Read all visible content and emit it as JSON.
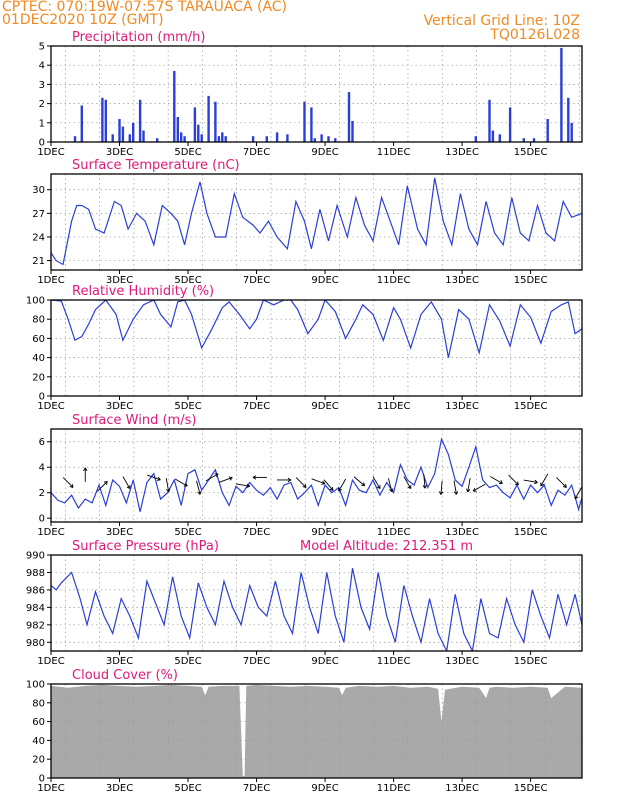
{
  "header": {
    "line1": "CPTEC:   070:19W-07:57S   TARAUACA (AC)",
    "line2": "01DEC2020 10Z (GMT)",
    "right1": "Vertical Grid Line: 10Z",
    "right2": "TQ0126L028"
  },
  "colors": {
    "header": "#f08a24",
    "title": "#e0197a",
    "series": "#2b3fd6",
    "wind": "#000000",
    "cloud": "#a9a9a9",
    "grid": "#999999"
  },
  "chart_data": [
    {
      "type": "bar",
      "title": "Precipitation  (mm/h)",
      "x_ticks": [
        "1DEC",
        "3DEC",
        "5DEC",
        "7DEC",
        "9DEC",
        "11DEC",
        "13DEC",
        "15DEC"
      ],
      "xlim": [
        0,
        15.5
      ],
      "ylim": [
        0,
        5
      ],
      "y_ticks": [
        0,
        1,
        2,
        3,
        4,
        5
      ],
      "grid": true,
      "x": [
        0.7,
        0.9,
        1.5,
        1.6,
        1.8,
        2.0,
        2.1,
        2.3,
        2.4,
        2.6,
        2.7,
        3.1,
        3.6,
        3.7,
        3.8,
        3.9,
        4.2,
        4.3,
        4.4,
        4.6,
        4.8,
        4.9,
        5.0,
        5.1,
        5.9,
        6.3,
        6.6,
        6.9,
        7.4,
        7.6,
        7.7,
        7.9,
        8.1,
        8.3,
        8.7,
        8.8,
        12.4,
        12.8,
        12.9,
        13.1,
        13.4,
        13.8,
        14.1,
        14.5,
        14.9,
        15.1,
        15.2
      ],
      "values": [
        0.3,
        1.9,
        2.3,
        2.2,
        0.4,
        1.2,
        0.8,
        0.4,
        1.0,
        2.2,
        0.6,
        0.2,
        3.7,
        1.3,
        0.5,
        0.3,
        1.8,
        0.9,
        0.4,
        2.4,
        2.1,
        0.3,
        0.5,
        0.3,
        0.3,
        0.3,
        0.5,
        0.4,
        2.1,
        1.8,
        0.2,
        0.4,
        0.3,
        0.2,
        2.6,
        1.1,
        0.3,
        2.2,
        0.6,
        0.4,
        1.8,
        0.2,
        0.2,
        1.2,
        4.9,
        2.3,
        1.0
      ]
    },
    {
      "type": "line",
      "title": "Surface Temperature  (nC)",
      "x_ticks": [
        "1DEC",
        "3DEC",
        "5DEC",
        "7DEC",
        "9DEC",
        "11DEC",
        "13DEC",
        "15DEC"
      ],
      "xlim": [
        0,
        15.5
      ],
      "ylim": [
        19.8,
        32.0
      ],
      "y_ticks": [
        21,
        24,
        27,
        30
      ],
      "grid": true,
      "series": [
        {
          "x": [
            0,
            0.15,
            0.35,
            0.6,
            0.75,
            0.9,
            1.1,
            1.3,
            1.55,
            1.85,
            2.05,
            2.25,
            2.5,
            2.75,
            3.0,
            3.25,
            3.5,
            3.7,
            3.9,
            4.1,
            4.35,
            4.55,
            4.8,
            5.1,
            5.35,
            5.6,
            5.9,
            6.1,
            6.35,
            6.6,
            6.9,
            7.15,
            7.4,
            7.6,
            7.85,
            8.1,
            8.35,
            8.65,
            8.9,
            9.15,
            9.4,
            9.65,
            9.9,
            10.15,
            10.4,
            10.7,
            10.95,
            11.2,
            11.45,
            11.7,
            11.95,
            12.2,
            12.45,
            12.7,
            12.95,
            13.2,
            13.45,
            13.7,
            13.95,
            14.2,
            14.45,
            14.7,
            14.95,
            15.2,
            15.5
          ],
          "y": [
            22.0,
            21.0,
            20.5,
            26.0,
            28.0,
            28.0,
            27.5,
            25.0,
            24.5,
            28.5,
            28.0,
            25.0,
            27.0,
            26.0,
            23.0,
            28.0,
            27.0,
            26.0,
            23.0,
            27.0,
            31.0,
            27.0,
            24.0,
            24.0,
            29.5,
            26.5,
            25.5,
            24.5,
            26.0,
            24.0,
            22.5,
            28.5,
            26.0,
            22.5,
            27.5,
            23.5,
            28.0,
            24.0,
            29.0,
            25.5,
            23.5,
            29.0,
            26.0,
            23.0,
            30.5,
            25.0,
            23.0,
            31.5,
            26.0,
            23.0,
            29.5,
            25.0,
            23.0,
            28.5,
            24.5,
            23.0,
            29.0,
            24.5,
            23.5,
            28.0,
            24.5,
            23.5,
            28.5,
            26.5,
            27.0
          ]
        }
      ]
    },
    {
      "type": "line",
      "title": "Relative Humidity  (%)",
      "x_ticks": [
        "1DEC",
        "3DEC",
        "5DEC",
        "7DEC",
        "9DEC",
        "11DEC",
        "13DEC",
        "15DEC"
      ],
      "xlim": [
        0,
        15.5
      ],
      "ylim": [
        0,
        100
      ],
      "y_ticks": [
        0,
        20,
        40,
        60,
        80,
        100
      ],
      "grid": true,
      "series": [
        {
          "x": [
            0,
            0.3,
            0.5,
            0.7,
            0.9,
            1.1,
            1.3,
            1.6,
            1.9,
            2.1,
            2.4,
            2.7,
            3.0,
            3.2,
            3.5,
            3.7,
            3.9,
            4.1,
            4.4,
            4.7,
            5.0,
            5.2,
            5.5,
            5.8,
            6.0,
            6.2,
            6.5,
            6.8,
            7.0,
            7.2,
            7.5,
            7.8,
            8.0,
            8.3,
            8.6,
            8.9,
            9.1,
            9.4,
            9.7,
            10.0,
            10.2,
            10.5,
            10.8,
            11.1,
            11.4,
            11.6,
            11.9,
            12.2,
            12.5,
            12.8,
            13.1,
            13.4,
            13.7,
            14.0,
            14.3,
            14.6,
            14.9,
            15.1,
            15.3,
            15.5
          ],
          "y": [
            100,
            99,
            80,
            58,
            62,
            75,
            90,
            100,
            85,
            58,
            80,
            95,
            100,
            85,
            72,
            98,
            100,
            85,
            50,
            70,
            92,
            98,
            85,
            70,
            80,
            100,
            95,
            100,
            100,
            90,
            65,
            80,
            100,
            88,
            60,
            80,
            95,
            85,
            58,
            92,
            80,
            50,
            85,
            98,
            80,
            40,
            90,
            80,
            45,
            95,
            78,
            52,
            95,
            82,
            55,
            88,
            95,
            98,
            65,
            70
          ]
        }
      ]
    },
    {
      "type": "line",
      "title": "Surface Wind  (m/s)",
      "x_ticks": [
        "1DEC",
        "3DEC",
        "5DEC",
        "7DEC",
        "9DEC",
        "11DEC",
        "13DEC",
        "15DEC"
      ],
      "xlim": [
        0,
        15.5
      ],
      "ylim": [
        -0.3,
        7.0
      ],
      "y_ticks": [
        0,
        2,
        4,
        6
      ],
      "grid": true,
      "series": [
        {
          "x": [
            0,
            0.2,
            0.4,
            0.6,
            0.8,
            1.0,
            1.2,
            1.4,
            1.6,
            1.8,
            2.0,
            2.2,
            2.4,
            2.6,
            2.8,
            3.0,
            3.2,
            3.4,
            3.6,
            3.8,
            4.0,
            4.2,
            4.4,
            4.6,
            4.8,
            5.0,
            5.2,
            5.4,
            5.6,
            5.8,
            6.0,
            6.2,
            6.4,
            6.6,
            6.8,
            7.0,
            7.2,
            7.4,
            7.6,
            7.8,
            8.0,
            8.2,
            8.4,
            8.6,
            8.8,
            9.0,
            9.2,
            9.4,
            9.6,
            9.8,
            10.0,
            10.2,
            10.4,
            10.6,
            10.8,
            11.0,
            11.2,
            11.4,
            11.6,
            11.8,
            12.0,
            12.2,
            12.4,
            12.6,
            12.8,
            13.0,
            13.2,
            13.4,
            13.6,
            13.8,
            14.0,
            14.2,
            14.4,
            14.6,
            14.8,
            15.0,
            15.2,
            15.4,
            15.5
          ],
          "y": [
            2.0,
            1.4,
            1.2,
            1.8,
            0.8,
            1.5,
            1.2,
            2.6,
            1.0,
            3.0,
            2.5,
            1.2,
            3.0,
            0.5,
            2.8,
            3.5,
            1.5,
            2.0,
            3.0,
            1.0,
            3.5,
            3.8,
            2.2,
            3.0,
            3.8,
            2.0,
            1.0,
            2.5,
            2.0,
            2.8,
            2.2,
            1.8,
            2.4,
            1.5,
            2.6,
            2.8,
            1.5,
            2.0,
            2.6,
            1.0,
            2.6,
            2.0,
            2.4,
            1.0,
            3.0,
            2.2,
            2.0,
            3.0,
            1.8,
            2.8,
            2.0,
            4.2,
            3.0,
            2.6,
            4.0,
            2.4,
            3.5,
            6.2,
            5.0,
            3.0,
            2.5,
            4.0,
            5.6,
            3.0,
            2.4,
            2.6,
            2.0,
            1.6,
            2.6,
            1.5,
            2.6,
            2.0,
            2.6,
            1.0,
            2.2,
            1.8,
            2.6,
            0.7,
            1.6
          ]
        }
      ],
      "wind_vectors": [
        {
          "x": 0.5,
          "y": 2.8,
          "angle": 45
        },
        {
          "x": 1.0,
          "y": 3.4,
          "angle": -90
        },
        {
          "x": 1.5,
          "y": 2.5,
          "angle": -45
        },
        {
          "x": 2.2,
          "y": 2.8,
          "angle": 60
        },
        {
          "x": 3.0,
          "y": 3.2,
          "angle": 20
        },
        {
          "x": 3.4,
          "y": 2.6,
          "angle": 80
        },
        {
          "x": 3.8,
          "y": 2.8,
          "angle": 30
        },
        {
          "x": 4.3,
          "y": 2.4,
          "angle": 75
        },
        {
          "x": 4.7,
          "y": 3.2,
          "angle": -30
        },
        {
          "x": 5.1,
          "y": 3.0,
          "angle": -20
        },
        {
          "x": 5.6,
          "y": 2.6,
          "angle": 10
        },
        {
          "x": 6.1,
          "y": 3.2,
          "angle": 180
        },
        {
          "x": 6.8,
          "y": 3.0,
          "angle": 0
        },
        {
          "x": 7.3,
          "y": 2.8,
          "angle": 45
        },
        {
          "x": 7.8,
          "y": 2.9,
          "angle": 20
        },
        {
          "x": 8.1,
          "y": 2.6,
          "angle": 50
        },
        {
          "x": 8.5,
          "y": 2.6,
          "angle": 120
        },
        {
          "x": 9.0,
          "y": 2.9,
          "angle": 40
        },
        {
          "x": 9.5,
          "y": 2.8,
          "angle": 60
        },
        {
          "x": 9.9,
          "y": 2.6,
          "angle": 75
        },
        {
          "x": 10.4,
          "y": 2.8,
          "angle": 60
        },
        {
          "x": 10.9,
          "y": 2.9,
          "angle": 85
        },
        {
          "x": 11.4,
          "y": 2.4,
          "angle": 95
        },
        {
          "x": 11.8,
          "y": 2.4,
          "angle": 80
        },
        {
          "x": 12.2,
          "y": 2.6,
          "angle": 100
        },
        {
          "x": 12.5,
          "y": 2.4,
          "angle": 150
        },
        {
          "x": 13.0,
          "y": 3.0,
          "angle": 30
        },
        {
          "x": 13.5,
          "y": 3.0,
          "angle": 45
        },
        {
          "x": 14.0,
          "y": 2.9,
          "angle": 10
        },
        {
          "x": 14.4,
          "y": 3.0,
          "angle": 120
        },
        {
          "x": 14.9,
          "y": 2.8,
          "angle": 45
        },
        {
          "x": 15.4,
          "y": 2.0,
          "angle": 120
        }
      ]
    },
    {
      "type": "line",
      "title": "Surface Pressure (hPa)",
      "annotation": "Model Altitude: 212.351 m",
      "x_ticks": [
        "1DEC",
        "3DEC",
        "5DEC",
        "7DEC",
        "9DEC",
        "11DEC",
        "13DEC",
        "15DEC"
      ],
      "xlim": [
        0,
        15.5
      ],
      "ylim": [
        979.0,
        990.0
      ],
      "y_ticks": [
        980,
        982,
        984,
        986,
        988,
        990
      ],
      "grid": true,
      "series": [
        {
          "x": [
            0,
            0.15,
            0.3,
            0.6,
            0.85,
            1.05,
            1.3,
            1.55,
            1.8,
            2.05,
            2.3,
            2.55,
            2.8,
            3.05,
            3.3,
            3.55,
            3.8,
            4.05,
            4.3,
            4.55,
            4.8,
            5.05,
            5.3,
            5.55,
            5.8,
            6.05,
            6.3,
            6.55,
            6.8,
            7.05,
            7.3,
            7.55,
            7.8,
            8.05,
            8.3,
            8.55,
            8.8,
            9.05,
            9.3,
            9.55,
            9.8,
            10.05,
            10.3,
            10.55,
            10.8,
            11.05,
            11.3,
            11.55,
            11.8,
            12.05,
            12.3,
            12.55,
            12.8,
            13.05,
            13.3,
            13.55,
            13.8,
            14.05,
            14.3,
            14.55,
            14.8,
            15.05,
            15.3,
            15.5
          ],
          "y": [
            986.5,
            986.0,
            986.8,
            988.0,
            985.0,
            982.0,
            985.8,
            983.0,
            981.0,
            985.0,
            983.0,
            980.5,
            987.0,
            984.5,
            982.0,
            987.5,
            983.0,
            980.5,
            986.8,
            984.0,
            982.0,
            987.0,
            984.0,
            982.0,
            986.5,
            984.0,
            983.0,
            987.0,
            983.0,
            981.0,
            988.0,
            984.0,
            981.0,
            988.0,
            983.0,
            980.0,
            988.5,
            984.0,
            981.5,
            988.0,
            983.0,
            980.0,
            986.5,
            983.0,
            980.0,
            985.0,
            981.0,
            979.0,
            985.5,
            981.0,
            979.0,
            985.0,
            981.0,
            980.5,
            985.0,
            982.0,
            980.0,
            986.0,
            983.0,
            980.5,
            985.5,
            982.0,
            985.5,
            982.0
          ]
        }
      ]
    },
    {
      "type": "area",
      "title": "Cloud Cover  (%)",
      "x_ticks": [
        "1DEC",
        "3DEC",
        "5DEC",
        "7DEC",
        "9DEC",
        "11DEC",
        "13DEC",
        "15DEC"
      ],
      "xlim": [
        0,
        15.5
      ],
      "ylim": [
        0,
        100
      ],
      "y_ticks": [
        0,
        20,
        40,
        60,
        80,
        100
      ],
      "grid": true,
      "series": [
        {
          "x": [
            0,
            0.5,
            1.0,
            1.5,
            2.0,
            2.5,
            3.0,
            3.5,
            4.0,
            4.4,
            4.5,
            4.6,
            5.0,
            5.5,
            5.6,
            5.65,
            5.7,
            6.0,
            6.5,
            7.0,
            7.5,
            8.0,
            8.4,
            8.5,
            8.6,
            9.0,
            9.5,
            10.0,
            10.5,
            11.0,
            11.3,
            11.4,
            11.5,
            12.0,
            12.5,
            12.7,
            12.8,
            13.0,
            13.5,
            14.0,
            14.5,
            14.6,
            15.0,
            15.5
          ],
          "y": [
            98,
            96,
            98,
            99,
            98,
            97,
            98,
            99,
            98,
            97,
            88,
            97,
            98,
            98,
            2,
            2,
            98,
            99,
            98,
            97,
            98,
            97,
            96,
            88,
            96,
            98,
            97,
            98,
            96,
            97,
            95,
            60,
            94,
            97,
            96,
            85,
            96,
            97,
            96,
            97,
            96,
            85,
            97,
            96
          ]
        }
      ]
    }
  ]
}
